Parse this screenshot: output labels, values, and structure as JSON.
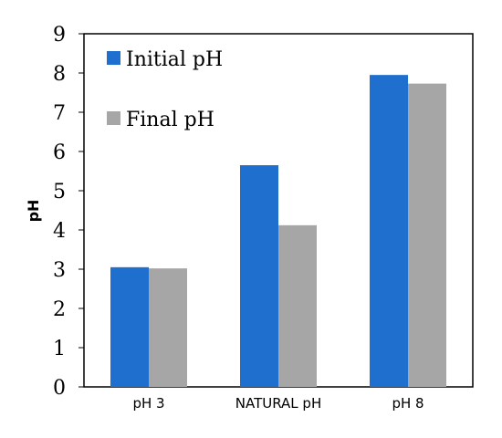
{
  "chart_data": {
    "type": "bar",
    "categories": [
      "pH 3",
      "NATURAL pH",
      "pH 8"
    ],
    "series": [
      {
        "name": "Initial pH",
        "values": [
          3.05,
          5.65,
          7.95
        ]
      },
      {
        "name": "Final pH",
        "values": [
          3.02,
          4.12,
          7.73
        ]
      }
    ],
    "title": "",
    "xlabel": "",
    "ylabel": "pH",
    "ylim": [
      0,
      9
    ],
    "yticks": [
      "0",
      "1",
      "2",
      "3",
      "4",
      "5",
      "6",
      "7",
      "8",
      "9"
    ],
    "grid": false,
    "legend_position": "top-left inside",
    "colors": {
      "initial": "#1f6fcf",
      "final": "#a6a6a6",
      "axis": "#000000"
    }
  }
}
